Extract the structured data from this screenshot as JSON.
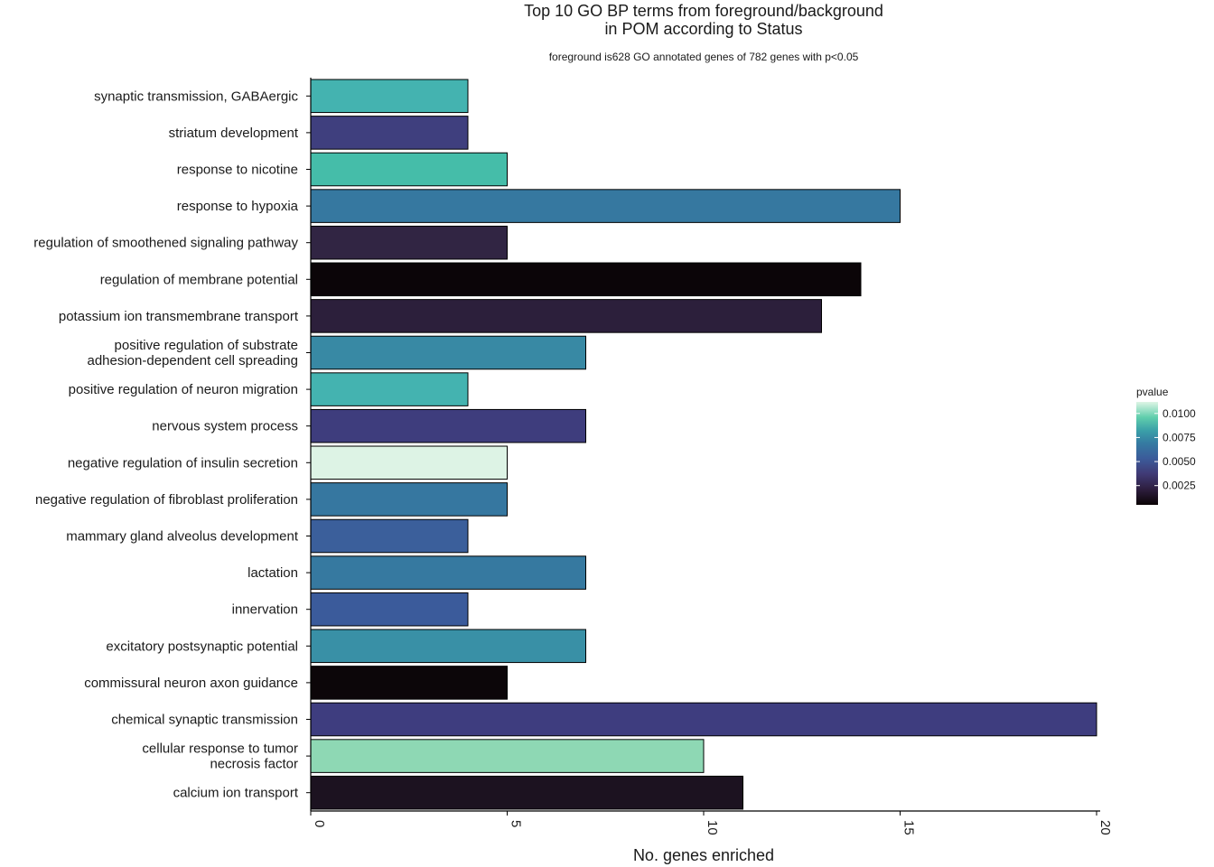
{
  "chart_data": {
    "type": "bar",
    "orientation": "horizontal",
    "title": "Top 10 GO BP terms from foreground/background\nin POM according to Status",
    "subtitle": "foreground is628 GO annotated genes of 782 genes with p<0.05",
    "xlabel": "No. genes enriched",
    "ylabel": "",
    "xlim": [
      0,
      20
    ],
    "x_ticks": [
      0,
      5,
      10,
      15,
      20
    ],
    "grid": false,
    "categories": [
      "synaptic transmission, GABAergic",
      "striatum development",
      "response to nicotine",
      "response to hypoxia",
      "regulation of smoothened signaling pathway",
      "regulation of membrane potential",
      "potassium ion transmembrane transport",
      "positive regulation of substrate\nadhesion-dependent cell spreading",
      "positive regulation of neuron migration",
      "nervous system process",
      "negative regulation of insulin secretion",
      "negative regulation of fibroblast proliferation",
      "mammary gland alveolus development",
      "lactation",
      "innervation",
      "excitatory postsynaptic potential",
      "commissural neuron axon guidance",
      "chemical synaptic transmission",
      "cellular response to tumor\nnecrosis factor",
      "calcium ion transport"
    ],
    "values": [
      4,
      4,
      5,
      15,
      5,
      14,
      13,
      7,
      4,
      7,
      5,
      5,
      4,
      7,
      4,
      7,
      5,
      20,
      10,
      11
    ],
    "colors": [
      "#44b3b0",
      "#3f3f7e",
      "#45bda9",
      "#3678a0",
      "#312543",
      "#0b0508",
      "#2c1f3b",
      "#3889a4",
      "#44b3b0",
      "#3e3d7d",
      "#ddf3e5",
      "#3677a0",
      "#3b5f9b",
      "#3679a0",
      "#3b5b9b",
      "#3990a6",
      "#0c0609",
      "#3e3d7f",
      "#8ed8b4",
      "#1c1220"
    ],
    "legend": {
      "title": "pvalue",
      "placement": "right",
      "ticks": [
        "0.0100",
        "0.0075",
        "0.0050",
        "0.0025"
      ],
      "range": [
        0.0005,
        0.0112
      ],
      "tick_values": [
        0.01,
        0.0075,
        0.005,
        0.0025
      ]
    }
  }
}
